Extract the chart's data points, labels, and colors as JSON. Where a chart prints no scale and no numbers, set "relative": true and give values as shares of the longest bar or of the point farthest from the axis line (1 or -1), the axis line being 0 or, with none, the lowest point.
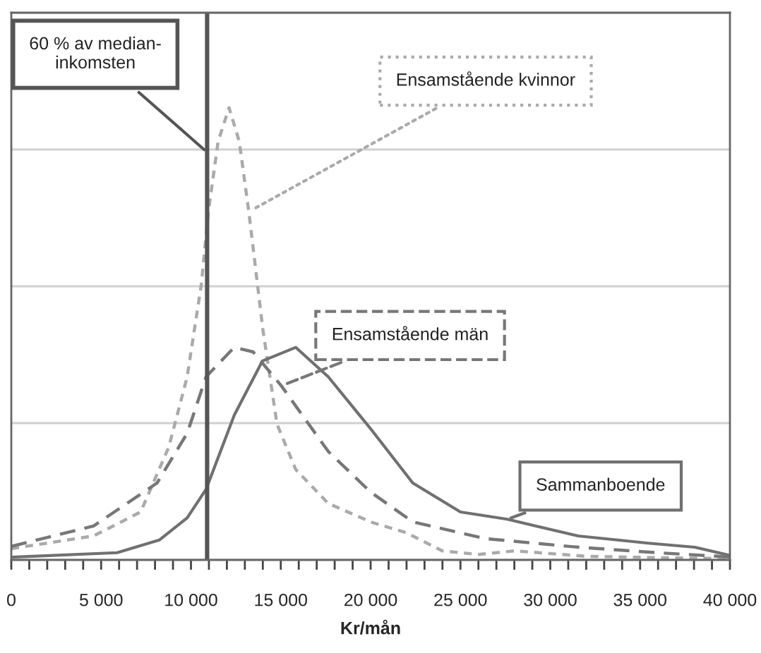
{
  "chart_data": {
    "type": "line",
    "relative": true,
    "xlabel": "Kr/mån",
    "xlim": [
      0,
      40000
    ],
    "xticks": [
      0,
      {
        "value": 1000,
        "label": null
      },
      {
        "value": 2000,
        "label": null
      },
      {
        "value": 3000,
        "label": null
      },
      {
        "value": 4000,
        "label": null
      },
      {
        "value": 5000,
        "label": "5 000"
      },
      {
        "value": 6000,
        "label": null
      },
      {
        "value": 7000,
        "label": null
      },
      {
        "value": 8000,
        "label": null
      },
      {
        "value": 9000,
        "label": null
      },
      {
        "value": 10000,
        "label": "10 000"
      },
      {
        "value": 11000,
        "label": null
      },
      {
        "value": 12000,
        "label": null
      },
      {
        "value": 13000,
        "label": null
      },
      {
        "value": 14000,
        "label": null
      },
      {
        "value": 15000,
        "label": "15 000"
      },
      {
        "value": 16000,
        "label": null
      },
      {
        "value": 17000,
        "label": null
      },
      {
        "value": 18000,
        "label": null
      },
      {
        "value": 19000,
        "label": null
      },
      {
        "value": 20000,
        "label": "20 000"
      },
      {
        "value": 21000,
        "label": null
      },
      {
        "value": 22000,
        "label": null
      },
      {
        "value": 23000,
        "label": null
      },
      {
        "value": 24000,
        "label": null
      },
      {
        "value": 25000,
        "label": "25 000"
      },
      {
        "value": 26000,
        "label": null
      },
      {
        "value": 27000,
        "label": null
      },
      {
        "value": 28000,
        "label": null
      },
      {
        "value": 29000,
        "label": null
      },
      {
        "value": 30000,
        "label": "30 000"
      },
      {
        "value": 31000,
        "label": null
      },
      {
        "value": 32000,
        "label": null
      },
      {
        "value": 33000,
        "label": null
      },
      {
        "value": 34000,
        "label": null
      },
      {
        "value": 35000,
        "label": "35 000"
      },
      {
        "value": 36000,
        "label": null
      },
      {
        "value": 37000,
        "label": null
      },
      {
        "value": 38000,
        "label": null
      },
      {
        "value": 39000,
        "label": null
      },
      {
        "value": 40000,
        "label": "40 000"
      }
    ],
    "grid": "y",
    "legend": false,
    "ref_lines": [
      {
        "axis": "x",
        "value": 10900,
        "label": "60 % av median-\ninkomsten",
        "color": "#555555",
        "line_style": "solid"
      }
    ],
    "series": [
      {
        "name": "Ensamstående kvinnor",
        "color": "#aaaaaa",
        "line_style": "dotted",
        "x": [
          0,
          4580,
          7200,
          8770,
          9790,
          10580,
          10970,
          11510,
          12120,
          12690,
          13220,
          14000,
          14790,
          15830,
          17640,
          20000,
          22000,
          24000,
          26000,
          28000,
          32000,
          36000,
          40000
        ],
        "values": [
          0.025,
          0.053,
          0.106,
          0.25,
          0.405,
          0.61,
          0.77,
          0.925,
          1.0,
          0.925,
          0.77,
          0.51,
          0.3,
          0.2,
          0.125,
          0.084,
          0.06,
          0.02,
          0.012,
          0.02,
          0.008,
          0.005,
          0.003
        ]
      },
      {
        "name": "Ensamstående män",
        "color": "#777777",
        "line_style": "dashed",
        "x": [
          0,
          4580,
          8110,
          9790,
          10840,
          12410,
          13460,
          15030,
          17640,
          20000,
          22350,
          26400,
          31300,
          35900,
          39400,
          40000
        ],
        "values": [
          0.03,
          0.075,
          0.17,
          0.28,
          0.405,
          0.47,
          0.46,
          0.385,
          0.24,
          0.15,
          0.084,
          0.047,
          0.029,
          0.016,
          0.008,
          0.006
        ]
      },
      {
        "name": "Sammanboende",
        "color": "#707070",
        "line_style": "solid",
        "x": [
          0,
          5890,
          8240,
          9790,
          10840,
          12410,
          13980,
          15830,
          17640,
          20000,
          22350,
          25000,
          27600,
          31550,
          35450,
          38050,
          40000
        ],
        "values": [
          0.006,
          0.016,
          0.044,
          0.093,
          0.156,
          0.32,
          0.44,
          0.47,
          0.405,
          0.29,
          0.17,
          0.106,
          0.09,
          0.053,
          0.037,
          0.028,
          0.01
        ]
      }
    ]
  }
}
